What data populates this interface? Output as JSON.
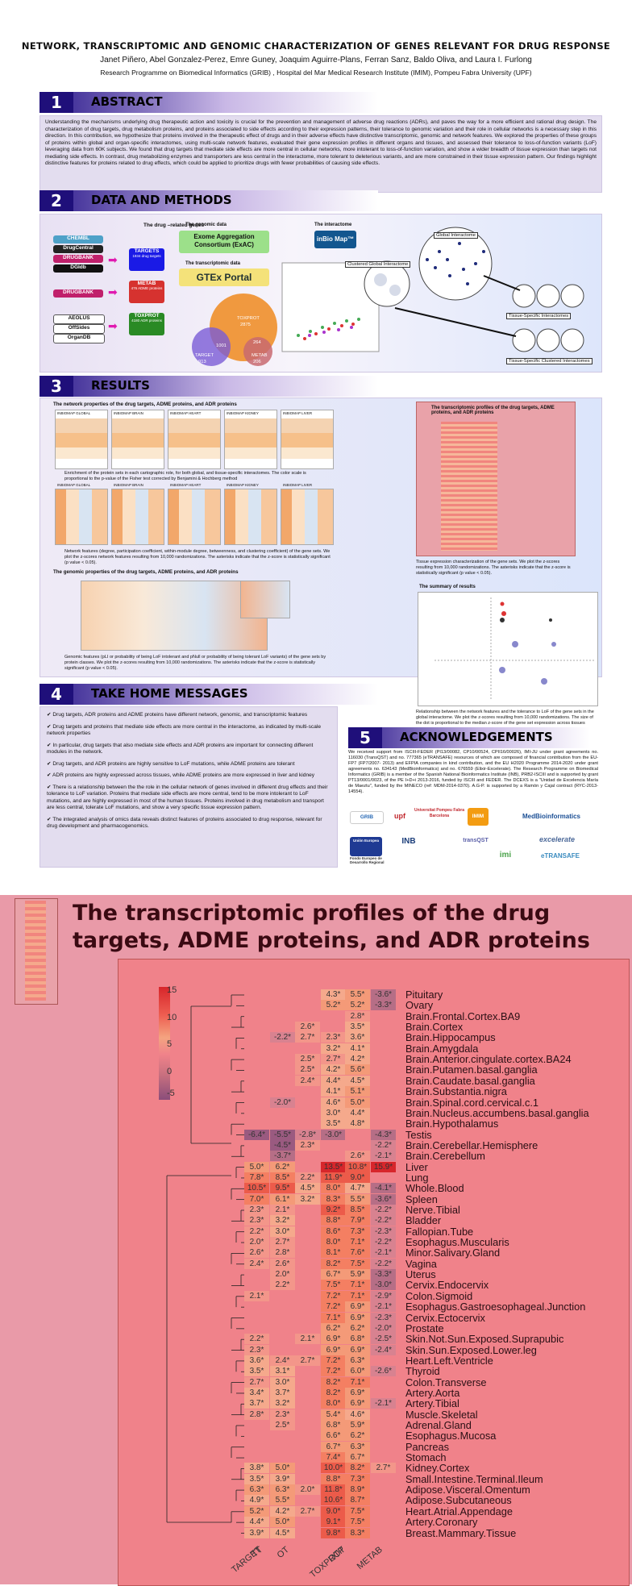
{
  "poster": {
    "title": "NETWORK, TRANSCRIPTOMIC AND GENOMIC CHARACTERIZATION OF GENES RELEVANT FOR DRUG RESPONSE",
    "authors": "Janet Piñero, Abel Gonzalez-Perez, Emre Guney, Joaquim Aguirre-Plans, Ferran Sanz, Baldo Oliva, and Laura I. Furlong",
    "affiliation": "Research Programme on Biomedical Informatics (GRIB) , Hospital del Mar Medical Research Institute (IMIM), Pompeu Fabra University (UPF)",
    "sections": {
      "s1": {
        "num": "1",
        "title": "ABSTRACT"
      },
      "s2": {
        "num": "2",
        "title": "DATA AND METHODS"
      },
      "s3": {
        "num": "3",
        "title": "RESULTS"
      },
      "s4": {
        "num": "4",
        "title": "TAKE HOME MESSAGES"
      },
      "s5": {
        "num": "5",
        "title": "ACKNOWLEDGEMENTS"
      }
    },
    "abstract": "Understanding the mechanisms underlying drug therapeutic action and toxicity is crucial for the prevention and management of adverse drug reactions (ADRs), and paves the way for a more efficient and rational drug design. The characterization of drug targets, drug metabolism proteins, and proteins associated to side effects according to their expression patterns, their tolerance to genomic variation and their role in cellular networks is a necessary step in this direction. In this contribution, we hypothesize that proteins involved in the therapeutic effect of drugs and in their adverse effects have distinctive transcriptomic, genomic and network features. We explored the properties of these groups of proteins within global and organ-specific interactomes, using multi-scale network features, evaluated their gene expression profiles in different organs and tissues, and assessed their tolerance to loss-of-function variants (LoF) leveraging data from 60K subjects. We found that drug targets that mediate side effects are more central in cellular networks, more intolerant to loss-of-function variation, and show a wider breadth of tissue expression than targets not mediating side effects. In contrast, drug metabolizing enzymes and transporters are less central in the interactome, more tolerant to deleterious variants, and are more constrained in their tissue expression pattern. Our findings highlight distinctive features for proteins related to drug effects, which could be applied to prioritize drugs with fewer probabilities of causing side effects.",
    "methods": {
      "drug_genes_label": "The drug –related genes",
      "sources": [
        "CHEMBL",
        "DrugCentral",
        "DRUGBANK",
        "DGIdb",
        "DRUGBANK",
        "AEOLUS",
        "OffSides",
        "OrganDB"
      ],
      "targets": {
        "name": "TARGETS",
        "count": "1934 drug targets"
      },
      "metab": {
        "name": "METAB",
        "count": "476 ADME proteins"
      },
      "toxprot": {
        "name": "TOXPROT",
        "count": "4180 ADR proteins"
      },
      "genomic_label": "The genomic data",
      "exac": "Exome Aggregation Consortium (ExAC)",
      "transcriptomic_label": "The transcriptomic data",
      "gtex": "GTEx Portal",
      "interactome_label": "The interactome",
      "inbio": "inBio Map™",
      "venn": {
        "toxprot": "TOXPROT",
        "toxprot_n": "2875",
        "target": "TARGET",
        "target_n": "913",
        "overlap": "1001",
        "overlap2": "264",
        "metab": "METAB",
        "metab_n": "206"
      },
      "interactome_labels": [
        "Global Interactome",
        "Clustered Global Interactome",
        "Tissue-Specific Interactomes",
        "Tissue-Specific Clustered Interactomes"
      ]
    },
    "results": {
      "network_title": "The network properties of the drug targets, ADME proteins, and ADR proteins",
      "panels": [
        "INBIOMAP GLOBAL",
        "INBIOMAP BRAIN",
        "INBIOMAP HEART",
        "INBIOMAP KIDNEY",
        "INBIOMAP LIVER"
      ],
      "network_caption": "Enrichment of the protein sets in each cartographic role, for both global, and tissue-specific interactomes. The color scale is proportional to the p-value of the Fisher test corrected by Benjamini & Hochberg method",
      "network_caption2": "Network features (degree, participation coefficient, within-module degree, betweenness, and clustering coefficient) of the gene sets. We plot the z-scores network features resulting from 10,000 randomizations. The asterisks indicate that the z-score is statistically significant (p value < 0.05).",
      "genomic_title": "The genomic properties of the drug targets, ADME proteins, and ADR proteins",
      "genomic_cols": [
        "TARGET",
        "TT",
        "OT",
        "TOXPROT",
        "OTP",
        "METAB"
      ],
      "genomic_caption": "Genomic features (pLI or probability of being LoF intolerant and pNull or probability of being tolerant LoF variants) of the gene sets by protein classes. We plot the z-scores resulting from 10,000 randomizations. The asterisks indicate that the z-score is statistically significant (p value < 0.05).",
      "transcriptomic_title": "The transcriptomic profiles of the drug targets, ADME proteins, and ADR proteins",
      "transcriptomic_caption": "Tissue expression characterization of the gene sets. We plot the z-scores resulting from 10,000 randomizations. The asterisks indicate that the z-score is statistically significant (p value < 0.05).",
      "summary_title": "The summary of results",
      "summary_caption": "Relationship between the network features and the tolerance to LoF of the gene sets in the global interactome. We plot the z-scores resulting from 10,000 randomizations. The size of the dot is proportional to the median z-score of the gene set expression across tissues"
    },
    "take_home": [
      "Drug targets, ADR proteins and ADME proteins have different network, genomic, and transcriptomic features",
      "Drug targets and proteins that mediate side effects are more central in the interactome, as indicated by multi-scale network properties",
      "In particular, drug targets that also mediate side effects and ADR proteins are important for connecting different modules in the network.",
      "Drug targets, and ADR proteins are highly sensitive to LoF mutations, while ADME proteins are tolerant",
      "ADR proteins are highly expressed across tissues, while ADME proteins are more expressed in liver and kidney",
      "There is a relationship between the the role in the cellular network of genes involved in different drug effects and their tolerance to LoF variation. Proteins that mediate side effects are more central, tend to be more intolerant to LoF mutations, and are highly expressed in most of the human tissues. Proteins involved in drug metabolism and transport are less central, tolerate LoF mutations, and show a very specific tissue expression pattern.",
      "The integrated analysis of omics data reveals distinct features of proteins associated to drug response, relevant for drug development and pharmacogenomics."
    ],
    "acknowledgements": "We received support from ISCIII-FEDER (PI13/00082, CP10/00524, CPII16/00026), IMI-JU under grant agreements no. 116030 (TransQST) and no. 777365 (eTRANSAFE) resources of which are composed of financial contribution from the EU-FP7 (FP7/2007- 2013) and EFPIA companies in kind contribution, and the EU H2020 Programme 2014-2020 under grant agreements no. 634143 (MedBioinformatics) and no. 676559 (Elixir-Excelerate). The Research Programme on Biomedical Informatics (GRIB) is a member of the Spanish National Bioinformatics Institute (INB), PRB2-ISCIII and is supported by grant PT13/0001/0023, of the PE I+D+i 2013-2016, funded by ISCIII and FEDER. The DCEXS is a \"Unidad de Excelencia María de Maeztu\", funded by the MINECO (ref: MDM-2014-0370). A.G-P. is supported by a Ramón y Cajal contract (RYC-2013-14554).",
    "logos": [
      "GRIB",
      "upf",
      "Universitat Pompeu Fabra Barcelona",
      "IMIM",
      "MedBioinformatics",
      "INB",
      "transQST",
      "excelerate",
      "imi",
      "eTRANSAFE",
      "Unión Europea",
      "Fondo Europeo de Desarrollo Regional"
    ]
  },
  "zoom": {
    "title": "The transcriptomic profiles of the drug targets, ADME proteins, and ADR proteins",
    "colorbar_ticks": [
      "15",
      "10",
      "5",
      "0",
      "-5"
    ],
    "colors": {
      "high": "#d7262b",
      "mid": "#f4a480",
      "zero": "#f0828a",
      "low": "#8a4d7a"
    }
  },
  "chart_data": {
    "type": "heatmap",
    "title": "The transcriptomic profiles of the drug targets, ADME proteins, and ADR proteins",
    "columns": [
      "TARGET",
      "TT",
      "OT",
      "TOXPROT",
      "OTP",
      "METAB"
    ],
    "colorbar_range": [
      -5,
      15
    ],
    "rows": [
      {
        "tissue": "Pituitary",
        "cells": [
          "",
          "",
          "",
          "4.3*",
          "5.5*",
          "-3.6*"
        ]
      },
      {
        "tissue": "Ovary",
        "cells": [
          "",
          "",
          "",
          "5.2*",
          "5.2*",
          "-3.3*"
        ]
      },
      {
        "tissue": "Brain.Frontal.Cortex.BA9",
        "cells": [
          "",
          "",
          "",
          "",
          "2.8*",
          ""
        ]
      },
      {
        "tissue": "Brain.Cortex",
        "cells": [
          "",
          "",
          "2.6*",
          "",
          "3.5*",
          ""
        ]
      },
      {
        "tissue": "Brain.Hippocampus",
        "cells": [
          "",
          "-2.2*",
          "2.7*",
          "2.3*",
          "3.6*",
          ""
        ]
      },
      {
        "tissue": "Brain.Amygdala",
        "cells": [
          "",
          "",
          "",
          "3.2*",
          "4.1*",
          ""
        ]
      },
      {
        "tissue": "Brain.Anterior.cingulate.cortex.BA24",
        "cells": [
          "",
          "",
          "2.5*",
          "2.7*",
          "4.2*",
          ""
        ]
      },
      {
        "tissue": "Brain.Putamen.basal.ganglia",
        "cells": [
          "",
          "",
          "2.5*",
          "4.2*",
          "5.6*",
          ""
        ]
      },
      {
        "tissue": "Brain.Caudate.basal.ganglia",
        "cells": [
          "",
          "",
          "2.4*",
          "4.4*",
          "4.5*",
          ""
        ]
      },
      {
        "tissue": "Brain.Substantia.nigra",
        "cells": [
          "",
          "",
          "",
          "4.1*",
          "5.1*",
          ""
        ]
      },
      {
        "tissue": "Brain.Spinal.cord.cervical.c.1",
        "cells": [
          "",
          "-2.0*",
          "",
          "4.6*",
          "5.0*",
          ""
        ]
      },
      {
        "tissue": "Brain.Nucleus.accumbens.basal.ganglia",
        "cells": [
          "",
          "",
          "",
          "3.0*",
          "4.4*",
          ""
        ]
      },
      {
        "tissue": "Brain.Hypothalamus",
        "cells": [
          "",
          "",
          "",
          "3.5*",
          "4.8*",
          ""
        ]
      },
      {
        "tissue": "Testis",
        "cells": [
          "-6.4*",
          "-5.5*",
          "-2.8*",
          "-3.0*",
          "",
          "-4.3*"
        ]
      },
      {
        "tissue": "Brain.Cerebellar.Hemisphere",
        "cells": [
          "",
          "-4.5*",
          "2.3*",
          "",
          "",
          "-2.2*"
        ]
      },
      {
        "tissue": "Brain.Cerebellum",
        "cells": [
          "",
          "-3.7*",
          "",
          "",
          "2.6*",
          "-2.1*"
        ]
      },
      {
        "tissue": "Liver",
        "cells": [
          "5.0*",
          "6.2*",
          "",
          "13.5*",
          "10.8*",
          "15.9*"
        ]
      },
      {
        "tissue": "Lung",
        "cells": [
          "7.8*",
          "8.5*",
          "2.2*",
          "11.9*",
          "9.0*",
          ""
        ]
      },
      {
        "tissue": "Whole.Blood",
        "cells": [
          "10.5*",
          "9.5*",
          "4.5*",
          "8.0*",
          "4.7*",
          "-4.1*"
        ]
      },
      {
        "tissue": "Spleen",
        "cells": [
          "7.0*",
          "6.1*",
          "3.2*",
          "8.3*",
          "5.5*",
          "-3.6*"
        ]
      },
      {
        "tissue": "Nerve.Tibial",
        "cells": [
          "2.3*",
          "2.1*",
          "",
          "9.2*",
          "8.5*",
          "-2.2*"
        ]
      },
      {
        "tissue": "Bladder",
        "cells": [
          "2.3*",
          "3.2*",
          "",
          "8.8*",
          "7.9*",
          "-2.2*"
        ]
      },
      {
        "tissue": "Fallopian.Tube",
        "cells": [
          "2.2*",
          "3.0*",
          "",
          "8.6*",
          "7.3*",
          "-2.3*"
        ]
      },
      {
        "tissue": "Esophagus.Muscularis",
        "cells": [
          "2.0*",
          "2.7*",
          "",
          "8.0*",
          "7.1*",
          "-2.2*"
        ]
      },
      {
        "tissue": "Minor.Salivary.Gland",
        "cells": [
          "2.6*",
          "2.8*",
          "",
          "8.1*",
          "7.6*",
          "-2.1*"
        ]
      },
      {
        "tissue": "Vagina",
        "cells": [
          "2.4*",
          "2.6*",
          "",
          "8.2*",
          "7.5*",
          "-2.2*"
        ]
      },
      {
        "tissue": "Uterus",
        "cells": [
          "",
          "2.0*",
          "",
          "6.7*",
          "5.9*",
          "-3.3*"
        ]
      },
      {
        "tissue": "Cervix.Endocervix",
        "cells": [
          "",
          "2.2*",
          "",
          "7.5*",
          "7.1*",
          "-3.0*"
        ]
      },
      {
        "tissue": "Colon.Sigmoid",
        "cells": [
          "2.1*",
          "",
          "",
          "7.2*",
          "7.1*",
          "-2.9*"
        ]
      },
      {
        "tissue": "Esophagus.Gastroesophageal.Junction",
        "cells": [
          "",
          "",
          "",
          "7.2*",
          "6.9*",
          "-2.1*"
        ]
      },
      {
        "tissue": "Cervix.Ectocervix",
        "cells": [
          "",
          "",
          "",
          "7.1*",
          "6.9*",
          "-2.3*"
        ]
      },
      {
        "tissue": "Prostate",
        "cells": [
          "",
          "",
          "",
          "6.2*",
          "6.2*",
          "-2.0*"
        ]
      },
      {
        "tissue": "Skin.Not.Sun.Exposed.Suprapubic",
        "cells": [
          "2.2*",
          "",
          "2.1*",
          "6.9*",
          "6.8*",
          "-2.5*"
        ]
      },
      {
        "tissue": "Skin.Sun.Exposed.Lower.leg",
        "cells": [
          "2.3*",
          "",
          "",
          "6.9*",
          "6.9*",
          "-2.4*"
        ]
      },
      {
        "tissue": "Heart.Left.Ventricle",
        "cells": [
          "3.6*",
          "2.4*",
          "2.7*",
          "7.2*",
          "6.3*",
          ""
        ]
      },
      {
        "tissue": "Thyroid",
        "cells": [
          "3.5*",
          "3.1*",
          "",
          "7.2*",
          "6.0*",
          "-2.6*"
        ]
      },
      {
        "tissue": "Colon.Transverse",
        "cells": [
          "2.7*",
          "3.0*",
          "",
          "8.2*",
          "7.1*",
          ""
        ]
      },
      {
        "tissue": "Artery.Aorta",
        "cells": [
          "3.4*",
          "3.7*",
          "",
          "8.2*",
          "6.9*",
          ""
        ]
      },
      {
        "tissue": "Artery.Tibial",
        "cells": [
          "3.7*",
          "3.2*",
          "",
          "8.0*",
          "6.9*",
          "-2.1*"
        ]
      },
      {
        "tissue": "Muscle.Skeletal",
        "cells": [
          "2.8*",
          "2.3*",
          "",
          "5.4*",
          "4.6*",
          ""
        ]
      },
      {
        "tissue": "Adrenal.Gland",
        "cells": [
          "",
          "2.5*",
          "",
          "6.8*",
          "5.9*",
          ""
        ]
      },
      {
        "tissue": "Esophagus.Mucosa",
        "cells": [
          "",
          "",
          "",
          "6.6*",
          "6.2*",
          ""
        ]
      },
      {
        "tissue": "Pancreas",
        "cells": [
          "",
          "",
          "",
          "6.7*",
          "6.3*",
          ""
        ]
      },
      {
        "tissue": "Stomach",
        "cells": [
          "",
          "",
          "",
          "7.4*",
          "6.7*",
          ""
        ]
      },
      {
        "tissue": "Kidney.Cortex",
        "cells": [
          "3.8*",
          "5.0*",
          "",
          "10.0*",
          "8.2*",
          "2.7*"
        ]
      },
      {
        "tissue": "Small.Intestine.Terminal.Ileum",
        "cells": [
          "3.5*",
          "3.9*",
          "",
          "8.8*",
          "7.3*",
          ""
        ]
      },
      {
        "tissue": "Adipose.Visceral.Omentum",
        "cells": [
          "6.3*",
          "6.3*",
          "2.0*",
          "11.8*",
          "8.9*",
          ""
        ]
      },
      {
        "tissue": "Adipose.Subcutaneous",
        "cells": [
          "4.9*",
          "5.5*",
          "",
          "10.6*",
          "8.7*",
          ""
        ]
      },
      {
        "tissue": "Heart.Atrial.Appendage",
        "cells": [
          "5.2*",
          "4.2*",
          "2.7*",
          "9.0*",
          "7.5*",
          ""
        ]
      },
      {
        "tissue": "Artery.Coronary",
        "cells": [
          "4.4*",
          "5.0*",
          "",
          "9.1*",
          "7.5*",
          ""
        ]
      },
      {
        "tissue": "Breast.Mammary.Tissue",
        "cells": [
          "3.9*",
          "4.5*",
          "",
          "9.8*",
          "8.3*",
          ""
        ]
      }
    ]
  }
}
